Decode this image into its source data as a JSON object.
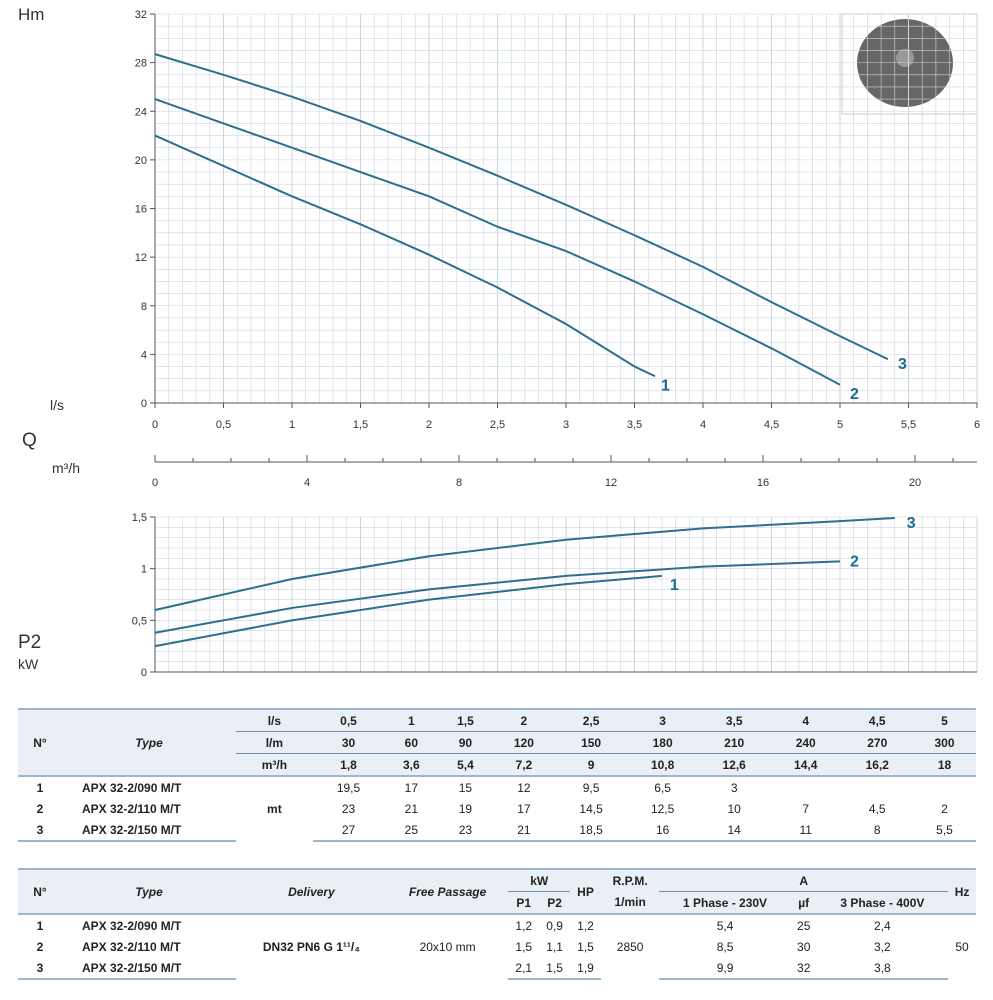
{
  "labels": {
    "h": "Hm",
    "ls": "l/s",
    "q": "Q",
    "m3h": "m³/h",
    "p2": "P2",
    "kw": "kW"
  },
  "chart_data": [
    {
      "type": "line",
      "xlabel": "l/s",
      "ylabel": "Hm",
      "xlim": [
        0,
        6
      ],
      "ylim": [
        0,
        32
      ],
      "grid": true,
      "xticks": [
        "0",
        "0,5",
        "1",
        "1,5",
        "2",
        "2,5",
        "3",
        "3,5",
        "4",
        "4,5",
        "5",
        "5,5",
        "6"
      ],
      "yticks": [
        "0",
        "4",
        "8",
        "12",
        "16",
        "20",
        "24",
        "28",
        "32"
      ],
      "secondary_xaxis": {
        "label": "m³/h",
        "ticks": [
          "0",
          "4",
          "8",
          "12",
          "16",
          "20"
        ]
      },
      "series": [
        {
          "name": "1",
          "points": [
            [
              0,
              22
            ],
            [
              0.5,
              19.5
            ],
            [
              1,
              17
            ],
            [
              1.5,
              14.7
            ],
            [
              2,
              12.2
            ],
            [
              2.5,
              9.5
            ],
            [
              3,
              6.5
            ],
            [
              3.5,
              3
            ],
            [
              3.65,
              2.2
            ]
          ]
        },
        {
          "name": "2",
          "points": [
            [
              0,
              25
            ],
            [
              0.5,
              23
            ],
            [
              1,
              21
            ],
            [
              1.5,
              19
            ],
            [
              2,
              17
            ],
            [
              2.5,
              14.5
            ],
            [
              3,
              12.5
            ],
            [
              3.5,
              10
            ],
            [
              4,
              7.3
            ],
            [
              4.5,
              4.5
            ],
            [
              5,
              1.5
            ]
          ]
        },
        {
          "name": "3",
          "points": [
            [
              0,
              28.7
            ],
            [
              0.5,
              27
            ],
            [
              1,
              25.2
            ],
            [
              1.5,
              23.2
            ],
            [
              2,
              21
            ],
            [
              2.5,
              18.7
            ],
            [
              3,
              16.3
            ],
            [
              3.5,
              13.8
            ],
            [
              4,
              11.2
            ],
            [
              4.5,
              8.3
            ],
            [
              5,
              5.5
            ],
            [
              5.35,
              3.6
            ]
          ]
        }
      ]
    },
    {
      "type": "line",
      "xlabel": "",
      "ylabel": "P2 kW",
      "xlim": [
        0,
        6
      ],
      "ylim": [
        0,
        1.5
      ],
      "grid": true,
      "yticks": [
        "0",
        "0,5",
        "1",
        "1,5"
      ],
      "series": [
        {
          "name": "1",
          "points": [
            [
              0,
              0.25
            ],
            [
              1,
              0.5
            ],
            [
              2,
              0.7
            ],
            [
              3,
              0.85
            ],
            [
              3.7,
              0.93
            ]
          ]
        },
        {
          "name": "2",
          "points": [
            [
              0,
              0.38
            ],
            [
              1,
              0.62
            ],
            [
              2,
              0.8
            ],
            [
              3,
              0.93
            ],
            [
              4,
              1.02
            ],
            [
              5,
              1.07
            ]
          ]
        },
        {
          "name": "3",
          "points": [
            [
              0,
              0.6
            ],
            [
              1,
              0.9
            ],
            [
              2,
              1.12
            ],
            [
              3,
              1.28
            ],
            [
              4,
              1.39
            ],
            [
              5,
              1.46
            ],
            [
              5.4,
              1.49
            ]
          ]
        }
      ]
    }
  ],
  "colors": {
    "curve": "#2e6f8e",
    "grid": "#c9d6de",
    "label": "#1c6c93"
  },
  "table1": {
    "n": "N°",
    "type": "Type",
    "units": [
      "l/s",
      "l/m",
      "m³/h"
    ],
    "unit_mt": "mt",
    "ls": [
      "0,5",
      "1",
      "1,5",
      "2",
      "2,5",
      "3",
      "3,5",
      "4",
      "4,5",
      "5"
    ],
    "lm": [
      "30",
      "60",
      "90",
      "120",
      "150",
      "180",
      "210",
      "240",
      "270",
      "300"
    ],
    "m3h": [
      "1,8",
      "3,6",
      "5,4",
      "7,2",
      "9",
      "10,8",
      "12,6",
      "14,4",
      "16,2",
      "18"
    ],
    "rows": [
      {
        "n": "1",
        "type": "APX 32-2/090 M/T",
        "h": [
          "19,5",
          "17",
          "15",
          "12",
          "9,5",
          "6,5",
          "3",
          "",
          "",
          ""
        ]
      },
      {
        "n": "2",
        "type": "APX 32-2/110 M/T",
        "h": [
          "23",
          "21",
          "19",
          "17",
          "14,5",
          "12,5",
          "10",
          "7",
          "4,5",
          "2"
        ]
      },
      {
        "n": "3",
        "type": "APX 32-2/150 M/T",
        "h": [
          "27",
          "25",
          "23",
          "21",
          "18,5",
          "16",
          "14",
          "11",
          "8",
          "5,5"
        ]
      }
    ]
  },
  "table2": {
    "headers": {
      "n": "N°",
      "type": "Type",
      "delivery": "Delivery",
      "free": "Free Passage",
      "kw": "kW",
      "p1": "P1",
      "p2": "P2",
      "hp": "HP",
      "rpm": "R.P.M.",
      "rpm_unit": "1/min",
      "a": "A",
      "ph1": "1 Phase - 230V",
      "uf": "µf",
      "ph3": "3 Phase - 400V",
      "hz": "Hz"
    },
    "delivery": "DN32 PN6 G 1¹¹/₄",
    "free": "20x10 mm",
    "rpm": "2850",
    "hz": "50",
    "rows": [
      {
        "n": "1",
        "type": "APX 32-2/090 M/T",
        "p1": "1,2",
        "p2": "0,9",
        "hp": "1,2",
        "a1": "5,4",
        "uf": "25",
        "a3": "2,4"
      },
      {
        "n": "2",
        "type": "APX 32-2/110 M/T",
        "p1": "1,5",
        "p2": "1,1",
        "hp": "1,5",
        "a1": "8,5",
        "uf": "30",
        "a3": "3,2"
      },
      {
        "n": "3",
        "type": "APX 32-2/150 M/T",
        "p1": "2,1",
        "p2": "1,5",
        "hp": "1,9",
        "a1": "9,9",
        "uf": "32",
        "a3": "3,8"
      }
    ]
  }
}
